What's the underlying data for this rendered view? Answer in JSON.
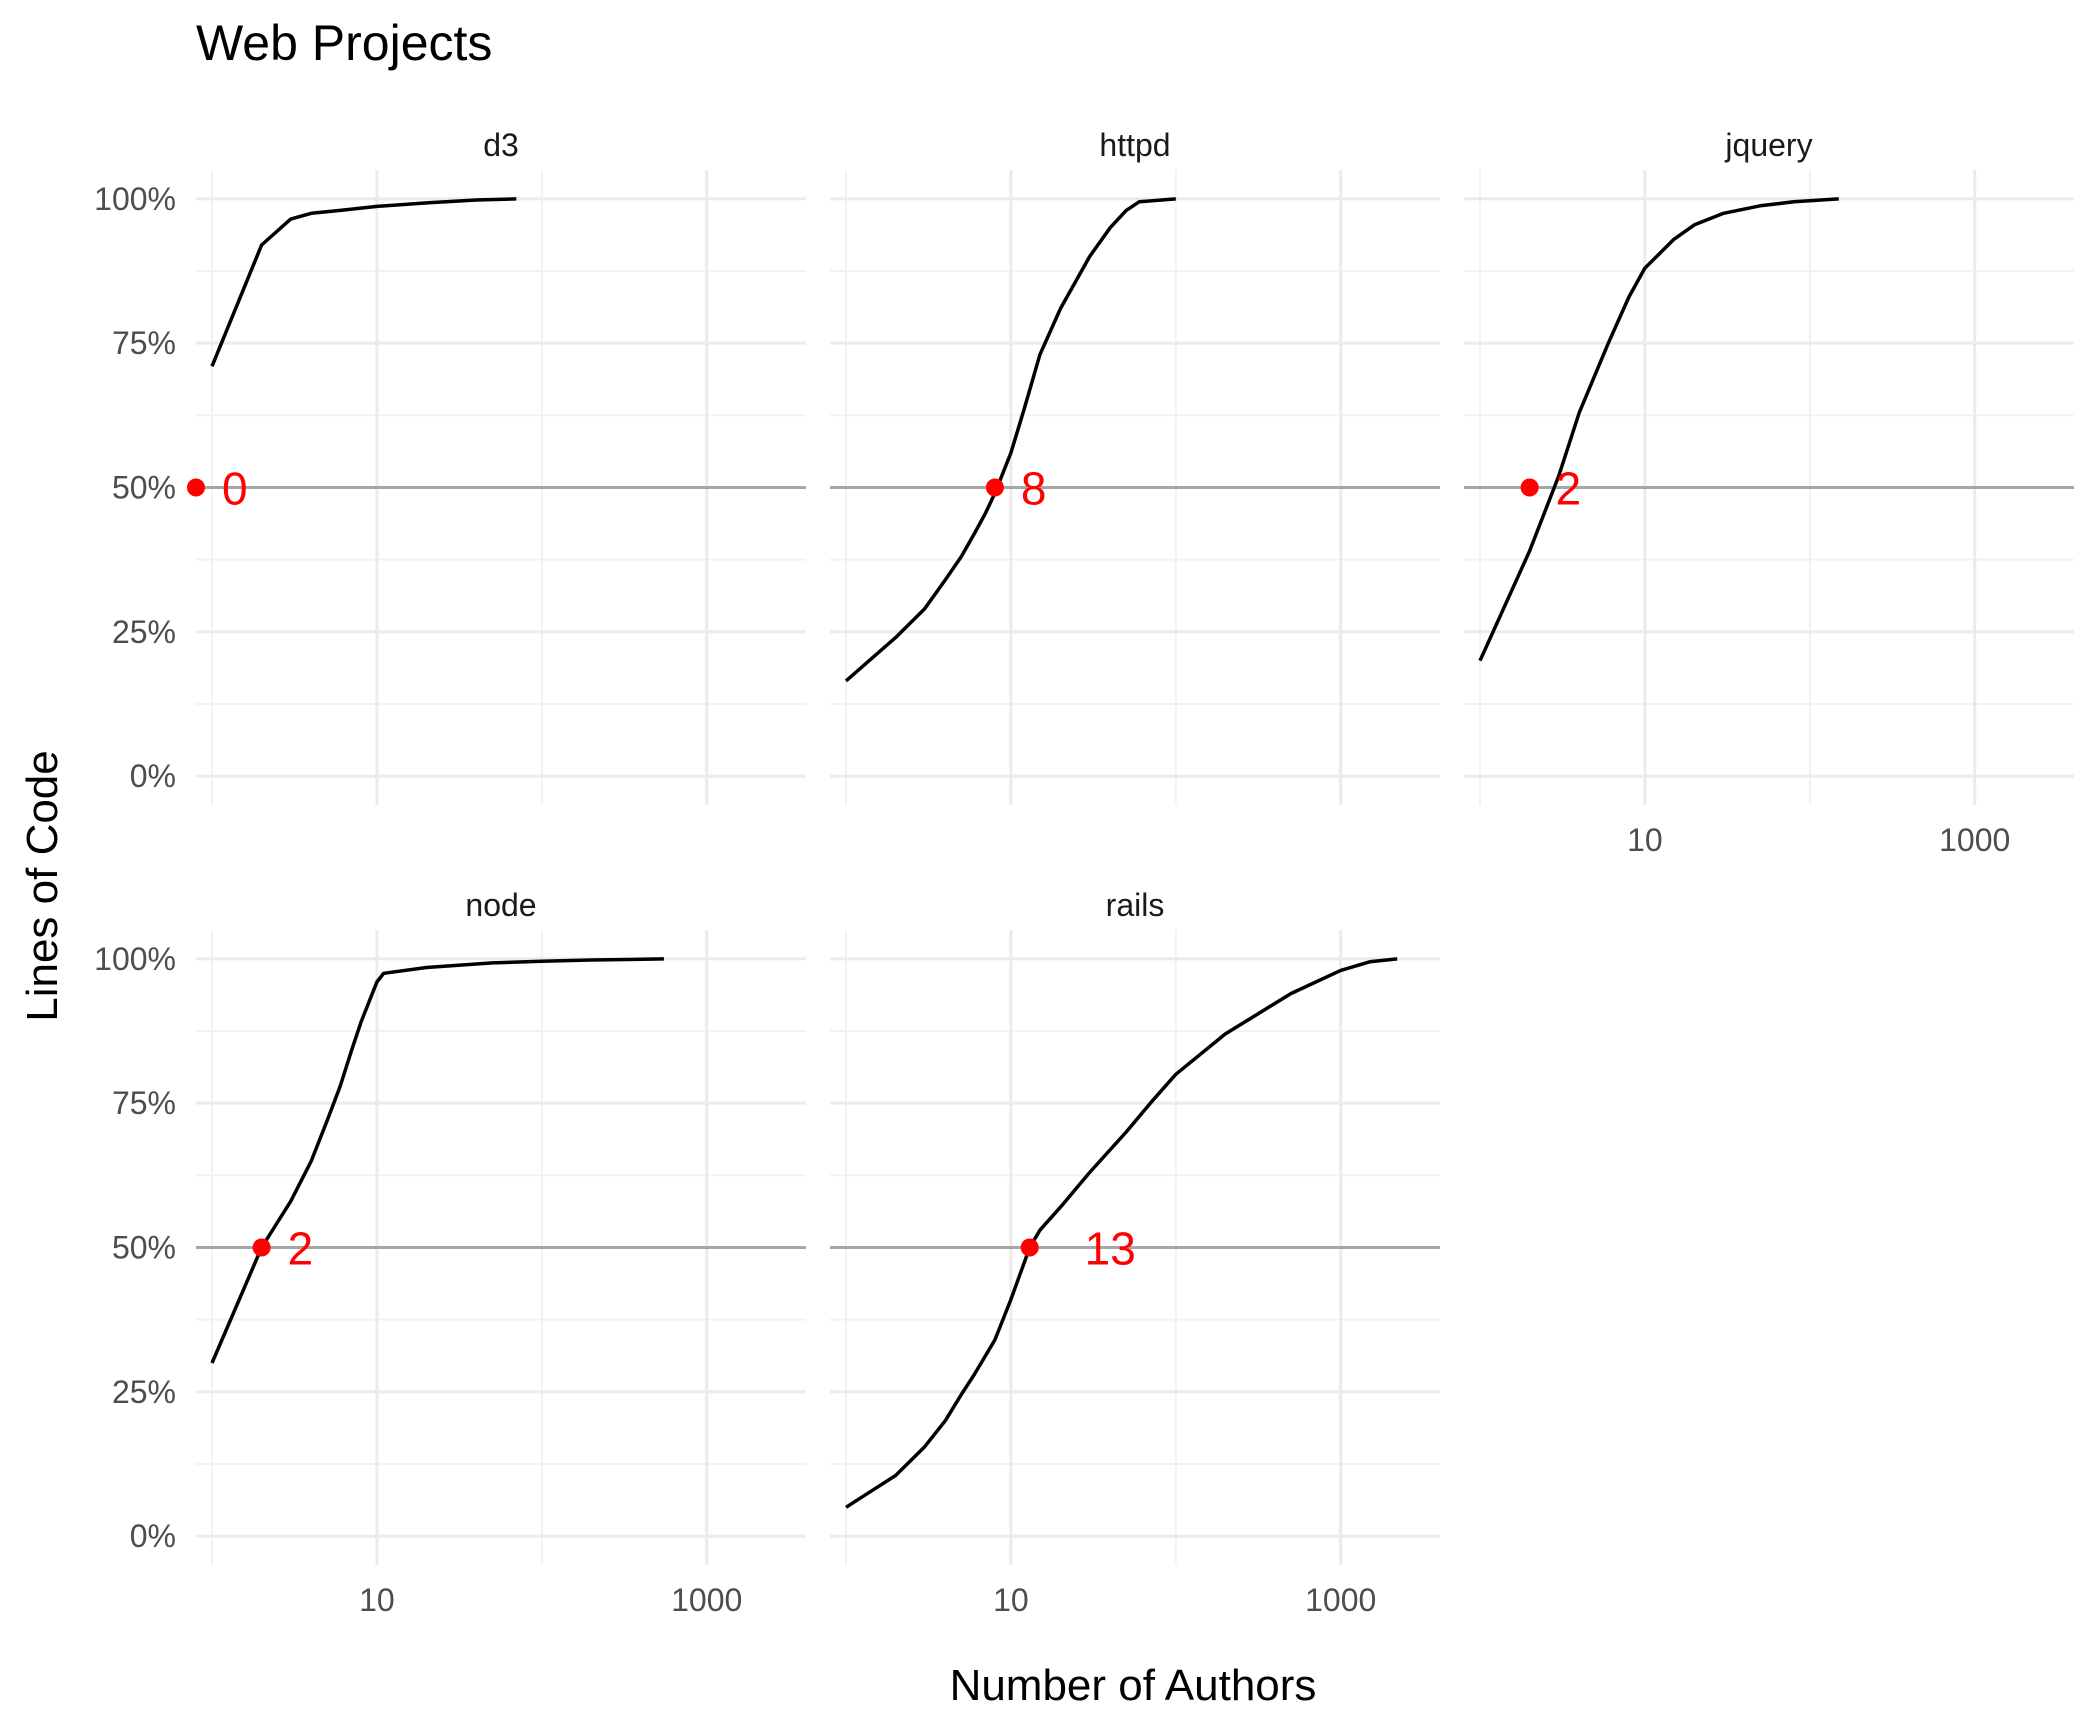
{
  "chart_data": {
    "type": "line",
    "title": "Web Projects",
    "xlabel": "Number of Authors",
    "ylabel": "Lines of Code",
    "x_scale": "log10",
    "x_ticks": [
      10,
      1000
    ],
    "x_tick_labels": [
      "10",
      "1000"
    ],
    "xlim": [
      0.8,
      4000
    ],
    "y_ticks": [
      0,
      0.25,
      0.5,
      0.75,
      1.0
    ],
    "y_tick_labels": [
      "0%",
      "25%",
      "50%",
      "75%",
      "100%"
    ],
    "ylim": [
      -0.05,
      1.05
    ],
    "reference_line_y": 0.5,
    "grid": true,
    "line_color": "#000000",
    "reference_line_color": "#a6a6a6",
    "highlight_color": "#ff0000",
    "facets": [
      {
        "name": "d3",
        "label": "d3",
        "x": [
          1,
          2,
          3,
          4,
          6,
          10,
          20,
          40,
          70
        ],
        "y": [
          0.71,
          0.92,
          0.965,
          0.975,
          0.98,
          0.987,
          0.993,
          0.998,
          1.0
        ],
        "highlight": {
          "x": 0.8,
          "y": 0.5,
          "label": "0"
        }
      },
      {
        "name": "httpd",
        "label": "httpd",
        "x": [
          1,
          2,
          3,
          4,
          5,
          6,
          7,
          8,
          10,
          12,
          15,
          20,
          30,
          40,
          50,
          60,
          100
        ],
        "y": [
          0.165,
          0.24,
          0.29,
          0.34,
          0.38,
          0.42,
          0.455,
          0.49,
          0.56,
          0.635,
          0.73,
          0.81,
          0.9,
          0.95,
          0.98,
          0.995,
          1.0
        ],
        "highlight": {
          "x": 8,
          "y": 0.5,
          "label": "8"
        }
      },
      {
        "name": "jquery",
        "label": "jquery",
        "x": [
          1,
          2,
          3,
          4,
          6,
          8,
          10,
          15,
          20,
          30,
          50,
          80,
          150
        ],
        "y": [
          0.2,
          0.39,
          0.52,
          0.63,
          0.75,
          0.83,
          0.88,
          0.93,
          0.955,
          0.975,
          0.988,
          0.995,
          1.0
        ],
        "highlight": {
          "x": 2,
          "y": 0.5,
          "label": "2"
        }
      },
      {
        "name": "node",
        "label": "node",
        "x": [
          1,
          2,
          3,
          4,
          5,
          6,
          7,
          8,
          10,
          11,
          20,
          50,
          100,
          200,
          550
        ],
        "y": [
          0.3,
          0.5,
          0.58,
          0.65,
          0.72,
          0.78,
          0.84,
          0.89,
          0.96,
          0.975,
          0.985,
          0.993,
          0.996,
          0.998,
          1.0
        ],
        "highlight": {
          "x": 2,
          "y": 0.5,
          "label": "2"
        }
      },
      {
        "name": "rails",
        "label": "rails",
        "x": [
          1,
          2,
          3,
          4,
          5,
          6,
          8,
          10,
          13,
          15,
          20,
          30,
          50,
          70,
          100,
          200,
          500,
          1000,
          1500,
          2200
        ],
        "y": [
          0.05,
          0.105,
          0.155,
          0.2,
          0.245,
          0.28,
          0.34,
          0.41,
          0.5,
          0.53,
          0.57,
          0.63,
          0.7,
          0.75,
          0.8,
          0.87,
          0.94,
          0.98,
          0.995,
          1.0
        ],
        "highlight": {
          "x": 13,
          "y": 0.5,
          "label": "13"
        }
      }
    ]
  }
}
